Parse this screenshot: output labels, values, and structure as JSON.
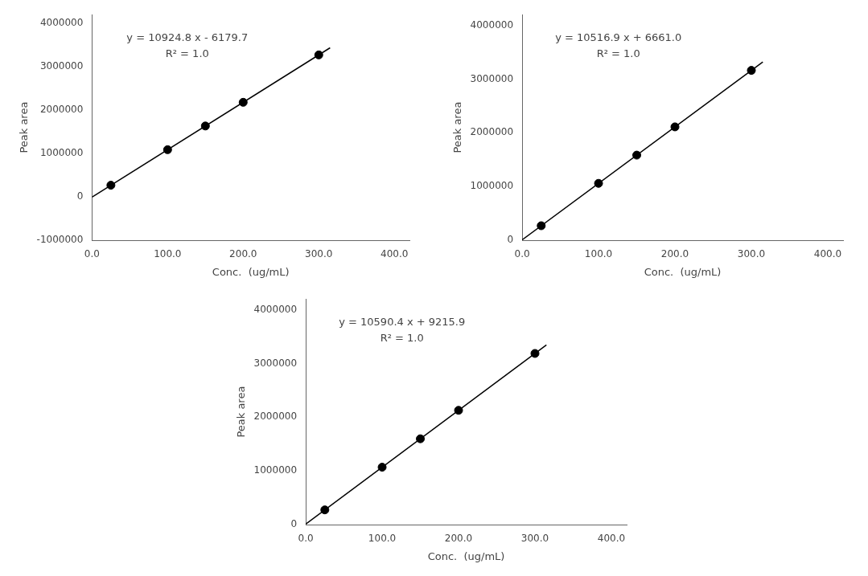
{
  "chart_data": [
    {
      "type": "scatter",
      "xlabel": "Conc.  (ug/mL)",
      "ylabel": "Peak area",
      "annotations": [
        "y = 10924.8 x - 6179.7",
        "R² = 1.0"
      ],
      "xlim": [
        0,
        420
      ],
      "xticks": [
        {
          "value": 0,
          "label": "0.0"
        },
        {
          "value": 100,
          "label": "100.0"
        },
        {
          "value": 200,
          "label": "200.0"
        },
        {
          "value": 300,
          "label": "300.0"
        },
        {
          "value": 400,
          "label": "400.0"
        }
      ],
      "ylim": [
        -1000000,
        4200000
      ],
      "yticks": [
        -1000000,
        0,
        1000000,
        2000000,
        3000000,
        4000000
      ],
      "grid": false,
      "series": [
        {
          "type": "line",
          "color": "black",
          "x": [
            0,
            315
          ],
          "values": [
            -6179.7,
            3435132.3
          ]
        },
        {
          "type": "scatter",
          "color": "black",
          "x": [
            25,
            100,
            150,
            200,
            300
          ],
          "values": [
            266940.3,
            1086300.3,
            1632540.3,
            2178780.3,
            3271260.3
          ]
        }
      ]
    },
    {
      "type": "scatter",
      "xlabel": "Conc.  (ug/mL)",
      "ylabel": "Peak area",
      "annotations": [
        "y = 10516.9 x + 6661.0",
        "R² = 1.0"
      ],
      "xlim": [
        0,
        420
      ],
      "xticks": [
        {
          "value": 0,
          "label": "0.0"
        },
        {
          "value": 100,
          "label": "100.0"
        },
        {
          "value": 200,
          "label": "200.0"
        },
        {
          "value": 300,
          "label": "300.0"
        },
        {
          "value": 400,
          "label": "400.0"
        }
      ],
      "ylim": [
        0,
        4200000
      ],
      "yticks": [
        0,
        1000000,
        2000000,
        3000000,
        4000000
      ],
      "grid": false,
      "series": [
        {
          "type": "line",
          "color": "black",
          "x": [
            0,
            315
          ],
          "values": [
            6661.0,
            3319484.5
          ]
        },
        {
          "type": "scatter",
          "color": "black",
          "x": [
            25,
            100,
            150,
            200,
            300
          ],
          "values": [
            269583.5,
            1058351,
            1584196,
            2110041,
            3161731
          ]
        }
      ]
    },
    {
      "type": "scatter",
      "xlabel": "Conc.  (ug/mL)",
      "ylabel": "Peak area",
      "annotations": [
        "y = 10590.4 x + 9215.9",
        "R² = 1.0"
      ],
      "xlim": [
        0,
        420
      ],
      "xticks": [
        {
          "value": 0,
          "label": "0.0"
        },
        {
          "value": 100,
          "label": "100.0"
        },
        {
          "value": 200,
          "label": "200.0"
        },
        {
          "value": 300,
          "label": "300.0"
        },
        {
          "value": 400,
          "label": "400.0"
        }
      ],
      "ylim": [
        0,
        4200000
      ],
      "yticks": [
        0,
        1000000,
        2000000,
        3000000,
        4000000
      ],
      "grid": false,
      "series": [
        {
          "type": "line",
          "color": "black",
          "x": [
            0,
            315
          ],
          "values": [
            9215.9,
            3345191.9
          ]
        },
        {
          "type": "scatter",
          "color": "black",
          "x": [
            25,
            100,
            150,
            200,
            300
          ],
          "values": [
            273975.9,
            1068255.9,
            1597775.9,
            2127295.9,
            3186335.9
          ]
        }
      ]
    }
  ]
}
